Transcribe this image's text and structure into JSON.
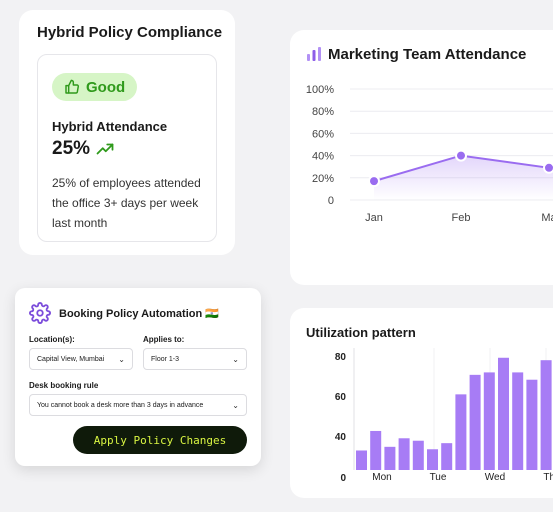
{
  "compliance": {
    "title": "Hybrid Policy Compliance",
    "badge_icon": "thumbs-up-icon",
    "badge_label": "Good",
    "metric_label": "Hybrid Attendance",
    "metric_value": "25%",
    "trend_icon": "trending-up-icon",
    "description": "25% of employees attended the office 3+ days per week last month",
    "colors": {
      "badge_bg": "#d6f5c6",
      "badge_text": "#2f9a1b"
    }
  },
  "attendance_card": {
    "title_icon": "bar-chart-icon",
    "title": "Marketing Team Attendance"
  },
  "booking": {
    "title": "Booking Policy Automation 🇮🇳",
    "icon": "gear-icon",
    "location_label": "Location(s):",
    "location_value": "Capital View, Mumbai",
    "applies_label": "Applies to:",
    "applies_value": "Floor 1-3",
    "rule_label": "Desk booking rule",
    "rule_value": "You cannot book a desk more than 3 days in advance",
    "apply_button": "Apply Policy Changes",
    "colors": {
      "button_bg": "#0f1a0a",
      "button_text": "#d9f542"
    }
  },
  "utilization_card": {
    "title": "Utilization pattern"
  },
  "chart_data": [
    {
      "type": "line",
      "title": "Marketing Team Attendance",
      "categories": [
        "Jan",
        "Feb",
        "Ma"
      ],
      "series": [
        {
          "values": [
            17,
            40,
            29
          ]
        }
      ],
      "y_ticks": [
        "100%",
        "80%",
        "60%",
        "40%",
        "20%",
        "0"
      ],
      "ylim": [
        0,
        100
      ],
      "grid": true,
      "color": "#9a6cf0"
    },
    {
      "type": "bar",
      "title": "Utilization pattern",
      "x_tick_labels": [
        "Mon",
        "Tue",
        "Wed",
        "Thu"
      ],
      "y_ticks": [
        "80",
        "60",
        "40",
        "0"
      ],
      "values": [
        16,
        32,
        19,
        26,
        24,
        17,
        22,
        62,
        78,
        80,
        92,
        80,
        74,
        90,
        72
      ],
      "ylim": [
        0,
        100
      ],
      "color": "#a77cf5"
    }
  ]
}
